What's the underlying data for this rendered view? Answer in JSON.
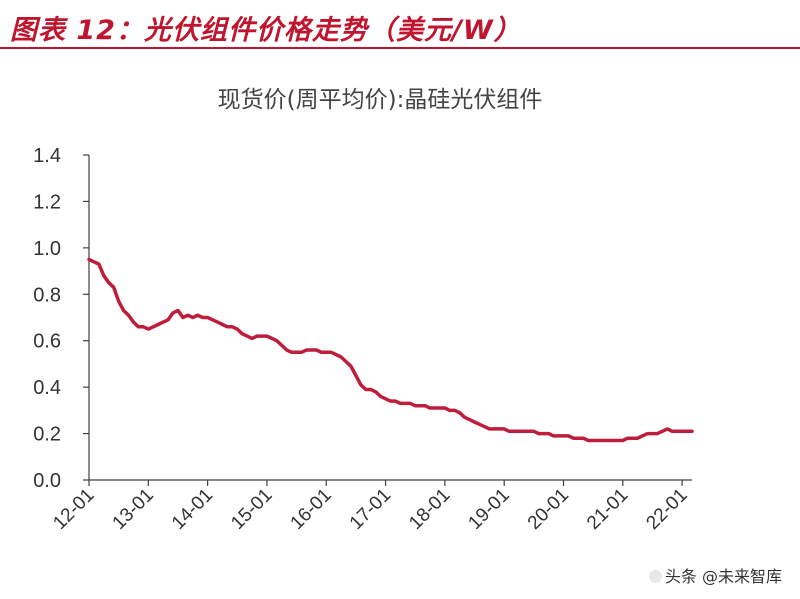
{
  "figure": {
    "caption": "图表 12：光伏组件价格走势（美元/W）"
  },
  "watermark": {
    "text": "头条 @未来智库"
  },
  "colors": {
    "caption": "#c0152f",
    "series": "#be1e3c",
    "axis": "#404040",
    "text": "#333333"
  },
  "chart_data": {
    "type": "line",
    "title": "现货价(周平均价):晶硅光伏组件",
    "xlabel": "",
    "ylabel": "",
    "ylim": [
      0,
      1.4
    ],
    "yticks": [
      "0.0",
      "0.2",
      "0.4",
      "0.6",
      "0.8",
      "1.0",
      "1.2",
      "1.4"
    ],
    "xlim": [
      "2012-01",
      "2022-03"
    ],
    "xticks": [
      "12-01",
      "13-01",
      "14-01",
      "15-01",
      "16-01",
      "17-01",
      "18-01",
      "19-01",
      "20-01",
      "21-01",
      "22-01"
    ],
    "grid": false,
    "legend": "none",
    "series": [
      {
        "x": [
          "2012-01",
          "2012-02",
          "2012-03",
          "2012-04",
          "2012-05",
          "2012-06",
          "2012-07",
          "2012-08",
          "2012-09",
          "2012-10",
          "2012-11",
          "2012-12",
          "2013-01",
          "2013-02",
          "2013-03",
          "2013-04",
          "2013-05",
          "2013-06",
          "2013-07",
          "2013-08",
          "2013-09",
          "2013-10",
          "2013-11",
          "2013-12",
          "2014-01",
          "2014-02",
          "2014-03",
          "2014-04",
          "2014-05",
          "2014-06",
          "2014-07",
          "2014-08",
          "2014-09",
          "2014-10",
          "2014-11",
          "2014-12",
          "2015-01",
          "2015-02",
          "2015-03",
          "2015-04",
          "2015-05",
          "2015-06",
          "2015-07",
          "2015-08",
          "2015-09",
          "2015-10",
          "2015-11",
          "2015-12",
          "2016-01",
          "2016-02",
          "2016-03",
          "2016-04",
          "2016-05",
          "2016-06",
          "2016-07",
          "2016-08",
          "2016-09",
          "2016-10",
          "2016-11",
          "2016-12",
          "2017-01",
          "2017-02",
          "2017-03",
          "2017-04",
          "2017-05",
          "2017-06",
          "2017-07",
          "2017-08",
          "2017-09",
          "2017-10",
          "2017-11",
          "2017-12",
          "2018-01",
          "2018-02",
          "2018-03",
          "2018-04",
          "2018-05",
          "2018-06",
          "2018-07",
          "2018-08",
          "2018-09",
          "2018-10",
          "2018-11",
          "2018-12",
          "2019-01",
          "2019-02",
          "2019-03",
          "2019-04",
          "2019-05",
          "2019-06",
          "2019-07",
          "2019-08",
          "2019-09",
          "2019-10",
          "2019-11",
          "2019-12",
          "2020-01",
          "2020-02",
          "2020-03",
          "2020-04",
          "2020-05",
          "2020-06",
          "2020-07",
          "2020-08",
          "2020-09",
          "2020-10",
          "2020-11",
          "2020-12",
          "2021-01",
          "2021-02",
          "2021-03",
          "2021-04",
          "2021-05",
          "2021-06",
          "2021-07",
          "2021-08",
          "2021-09",
          "2021-10",
          "2021-11",
          "2021-12",
          "2022-01",
          "2022-02",
          "2022-03"
        ],
        "values": [
          0.95,
          0.94,
          0.93,
          0.88,
          0.85,
          0.83,
          0.77,
          0.73,
          0.71,
          0.68,
          0.66,
          0.66,
          0.65,
          0.66,
          0.67,
          0.68,
          0.69,
          0.72,
          0.73,
          0.7,
          0.71,
          0.7,
          0.71,
          0.7,
          0.7,
          0.69,
          0.68,
          0.67,
          0.66,
          0.66,
          0.65,
          0.63,
          0.62,
          0.61,
          0.62,
          0.62,
          0.62,
          0.61,
          0.6,
          0.58,
          0.56,
          0.55,
          0.55,
          0.55,
          0.56,
          0.56,
          0.56,
          0.55,
          0.55,
          0.55,
          0.54,
          0.53,
          0.51,
          0.49,
          0.45,
          0.41,
          0.39,
          0.39,
          0.38,
          0.36,
          0.35,
          0.34,
          0.34,
          0.33,
          0.33,
          0.33,
          0.32,
          0.32,
          0.32,
          0.31,
          0.31,
          0.31,
          0.31,
          0.3,
          0.3,
          0.29,
          0.27,
          0.26,
          0.25,
          0.24,
          0.23,
          0.22,
          0.22,
          0.22,
          0.22,
          0.21,
          0.21,
          0.21,
          0.21,
          0.21,
          0.21,
          0.2,
          0.2,
          0.2,
          0.19,
          0.19,
          0.19,
          0.19,
          0.18,
          0.18,
          0.18,
          0.17,
          0.17,
          0.17,
          0.17,
          0.17,
          0.17,
          0.17,
          0.17,
          0.18,
          0.18,
          0.18,
          0.19,
          0.2,
          0.2,
          0.2,
          0.21,
          0.22,
          0.21,
          0.21,
          0.21,
          0.21,
          0.21
        ]
      }
    ]
  }
}
